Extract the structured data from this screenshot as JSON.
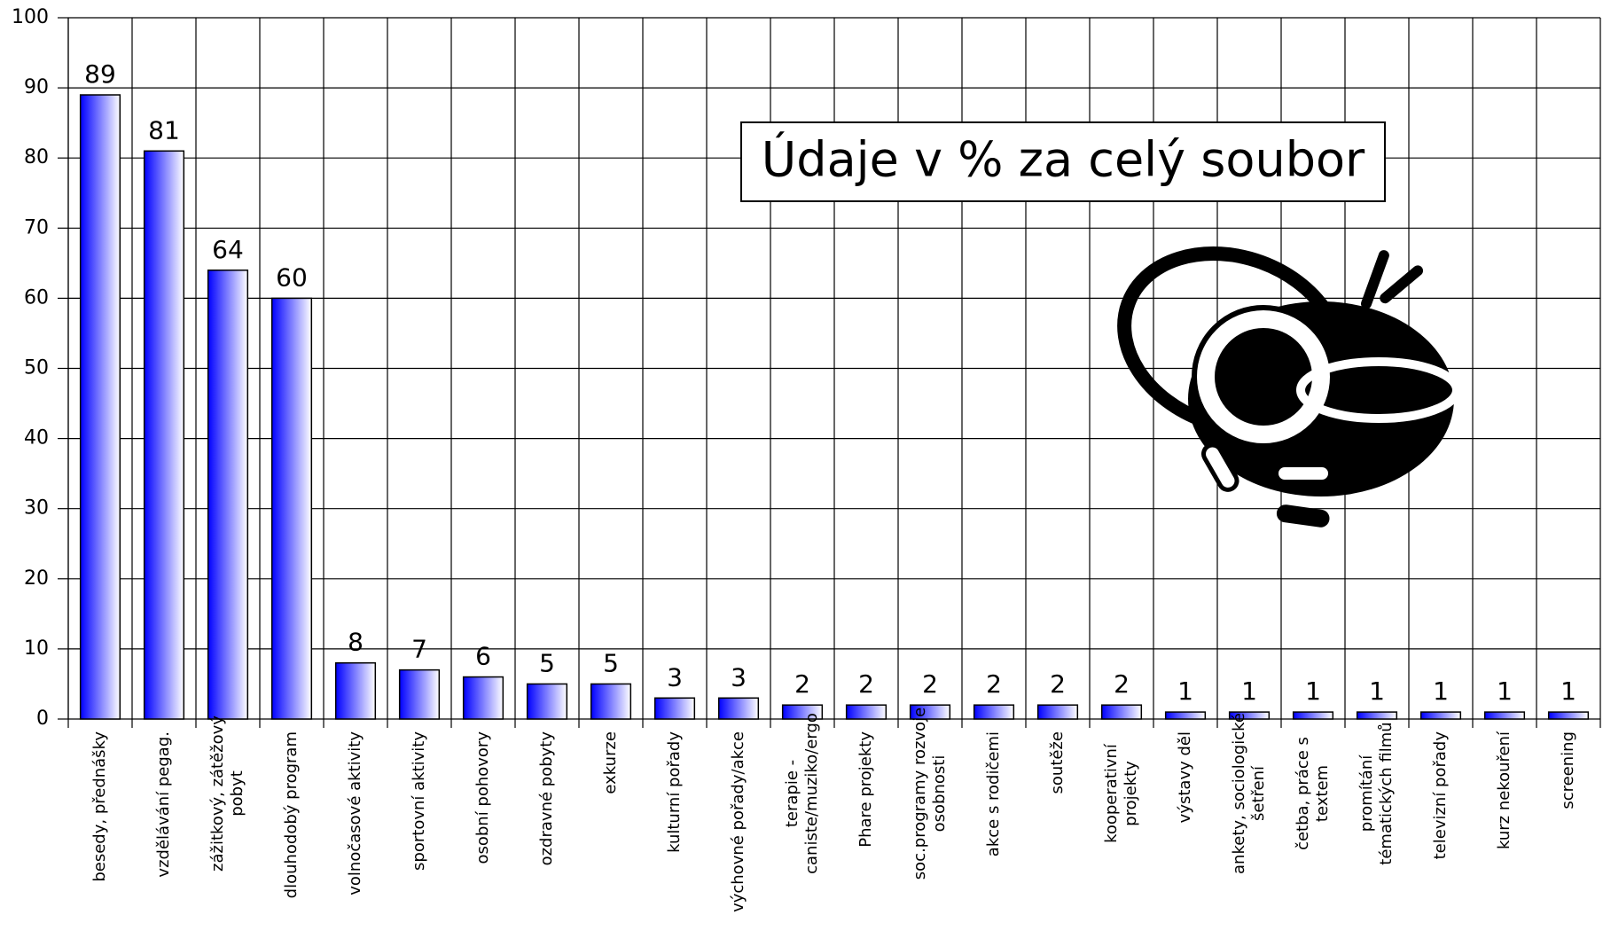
{
  "chart_data": {
    "type": "bar",
    "title": "Údaje v % za celý soubor",
    "categories": [
      "besedy, přednášky",
      "vzdělávání pegag.",
      "zážitkový, zátěžový pobyt",
      "dlouhodobý program",
      "volnočasové aktivity",
      "sportovní aktivity",
      "osobní pohovory",
      "ozdravné pobyty",
      "exkurze",
      "kulturní pořady",
      "výchovné pořady/akce",
      "terapie - caniste/muziko/ergo",
      "Phare projekty",
      "soc.programy rozvoje osobnosti",
      "akce s rodičemi",
      "soutěže",
      "kooperativní projekty",
      "výstavy děl",
      "ankety, sociologické šetření",
      "četba, práce s textem",
      "promítání tématických filmů",
      "televizní pořady",
      "kurz nekouření",
      "screening"
    ],
    "values": [
      89,
      81,
      64,
      60,
      8,
      7,
      6,
      5,
      5,
      3,
      3,
      2,
      2,
      2,
      2,
      2,
      2,
      1,
      1,
      1,
      1,
      1,
      1,
      1
    ],
    "color": "#0000ff",
    "ylim": [
      0,
      100
    ],
    "yticks": [
      0,
      10,
      20,
      30,
      40,
      50,
      60,
      70,
      80,
      90,
      100
    ],
    "grid": true
  }
}
